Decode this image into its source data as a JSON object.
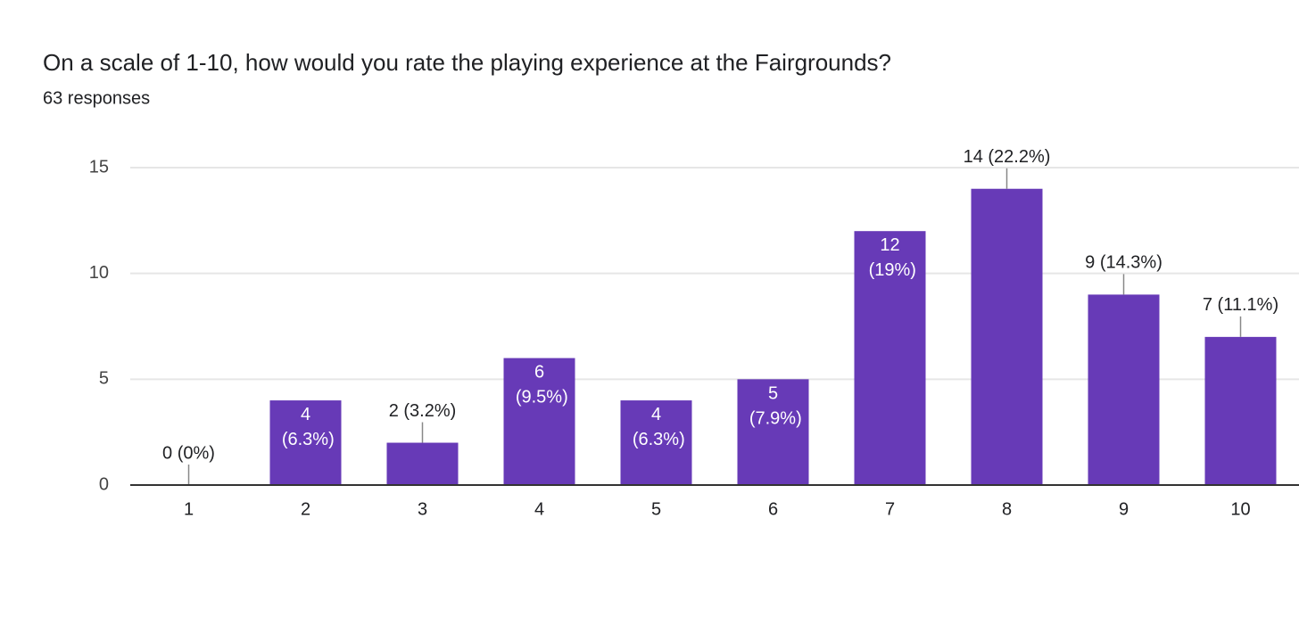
{
  "chart_data": {
    "type": "bar",
    "title": "On a scale of 1-10, how would you rate the playing experience at the Fairgrounds?",
    "subtitle": "63 responses",
    "categories": [
      "1",
      "2",
      "3",
      "4",
      "5",
      "6",
      "7",
      "8",
      "9",
      "10"
    ],
    "values": [
      0,
      4,
      2,
      6,
      4,
      5,
      12,
      14,
      9,
      7
    ],
    "value_labels": [
      "0 (0%)",
      "4 (6.3%)",
      "2 (3.2%)",
      "6 (9.5%)",
      "4 (6.3%)",
      "5 (7.9%)",
      "12 (19%)",
      "14 (22.2%)",
      "9 (14.3%)",
      "7 (11.1%)"
    ],
    "color": "#673ab7",
    "ylim": [
      0,
      15
    ],
    "yticks": [
      0,
      5,
      10,
      15
    ],
    "grid": true
  }
}
